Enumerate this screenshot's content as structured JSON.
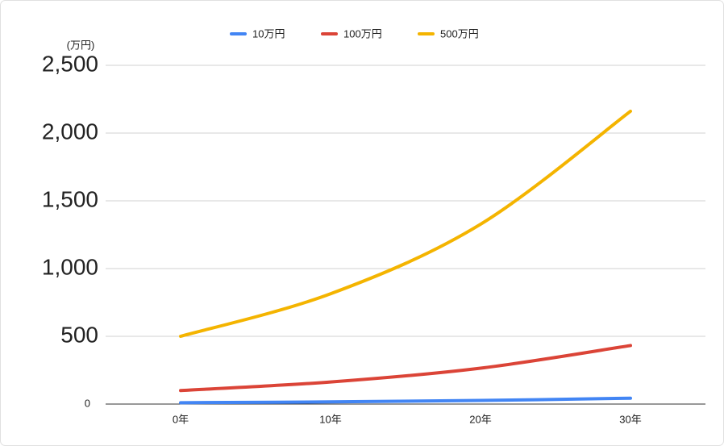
{
  "chart_data": {
    "type": "line",
    "y_unit": "(万円)",
    "categories": [
      "0年",
      "10年",
      "20年",
      "30年"
    ],
    "series": [
      {
        "name": "10万円",
        "color": "#4285f4",
        "values": [
          10,
          16.3,
          26.5,
          43.2
        ]
      },
      {
        "name": "100万円",
        "color": "#db4437",
        "values": [
          100,
          163,
          265,
          432
        ]
      },
      {
        "name": "500万円",
        "color": "#f4b400",
        "values": [
          500,
          814,
          1327,
          2161
        ]
      }
    ],
    "ylim": [
      0,
      2500
    ],
    "yticks": [
      0,
      500,
      {
        "value": 1000,
        "label": "1,000"
      },
      {
        "value": 1500,
        "label": "1,500"
      },
      {
        "value": 2000,
        "label": "2,000"
      },
      {
        "value": 2500,
        "label": "2,500"
      }
    ],
    "grid": true,
    "legend": "top"
  }
}
